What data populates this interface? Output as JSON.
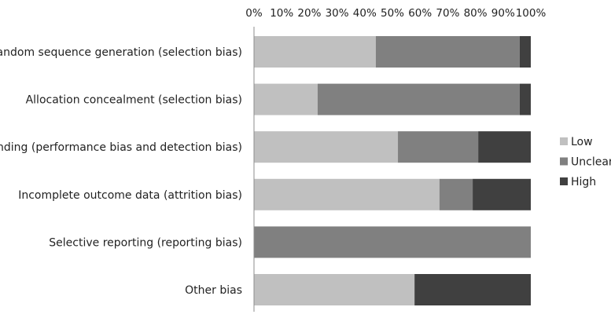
{
  "chart_data": {
    "type": "bar",
    "orientation": "horizontal",
    "stacked": "percent",
    "title": "",
    "xlabel": "",
    "ylabel": "",
    "xlim": [
      0,
      100
    ],
    "x_ticks": [
      "0%",
      "10%",
      "20%",
      "30%",
      "40%",
      "50%",
      "60%",
      "70%",
      "80%",
      "90%",
      "100%"
    ],
    "categories": [
      "Random sequence generation (selection bias)",
      "Allocation concealment (selection bias)",
      "Blinding (performance bias and detection bias)",
      "Incomplete outcome data (attrition bias)",
      "Selective reporting (reporting bias)",
      "Other bias"
    ],
    "series": [
      {
        "name": "Low",
        "color": "#c0c0c0",
        "values": [
          44,
          23,
          52,
          67,
          0,
          58
        ]
      },
      {
        "name": "Unclear",
        "color": "#808080",
        "values": [
          52,
          73,
          29,
          12,
          100,
          0
        ]
      },
      {
        "name": "High",
        "color": "#404040",
        "values": [
          4,
          4,
          19,
          21,
          0,
          42
        ]
      }
    ],
    "legend_position": "right",
    "grid": false
  }
}
